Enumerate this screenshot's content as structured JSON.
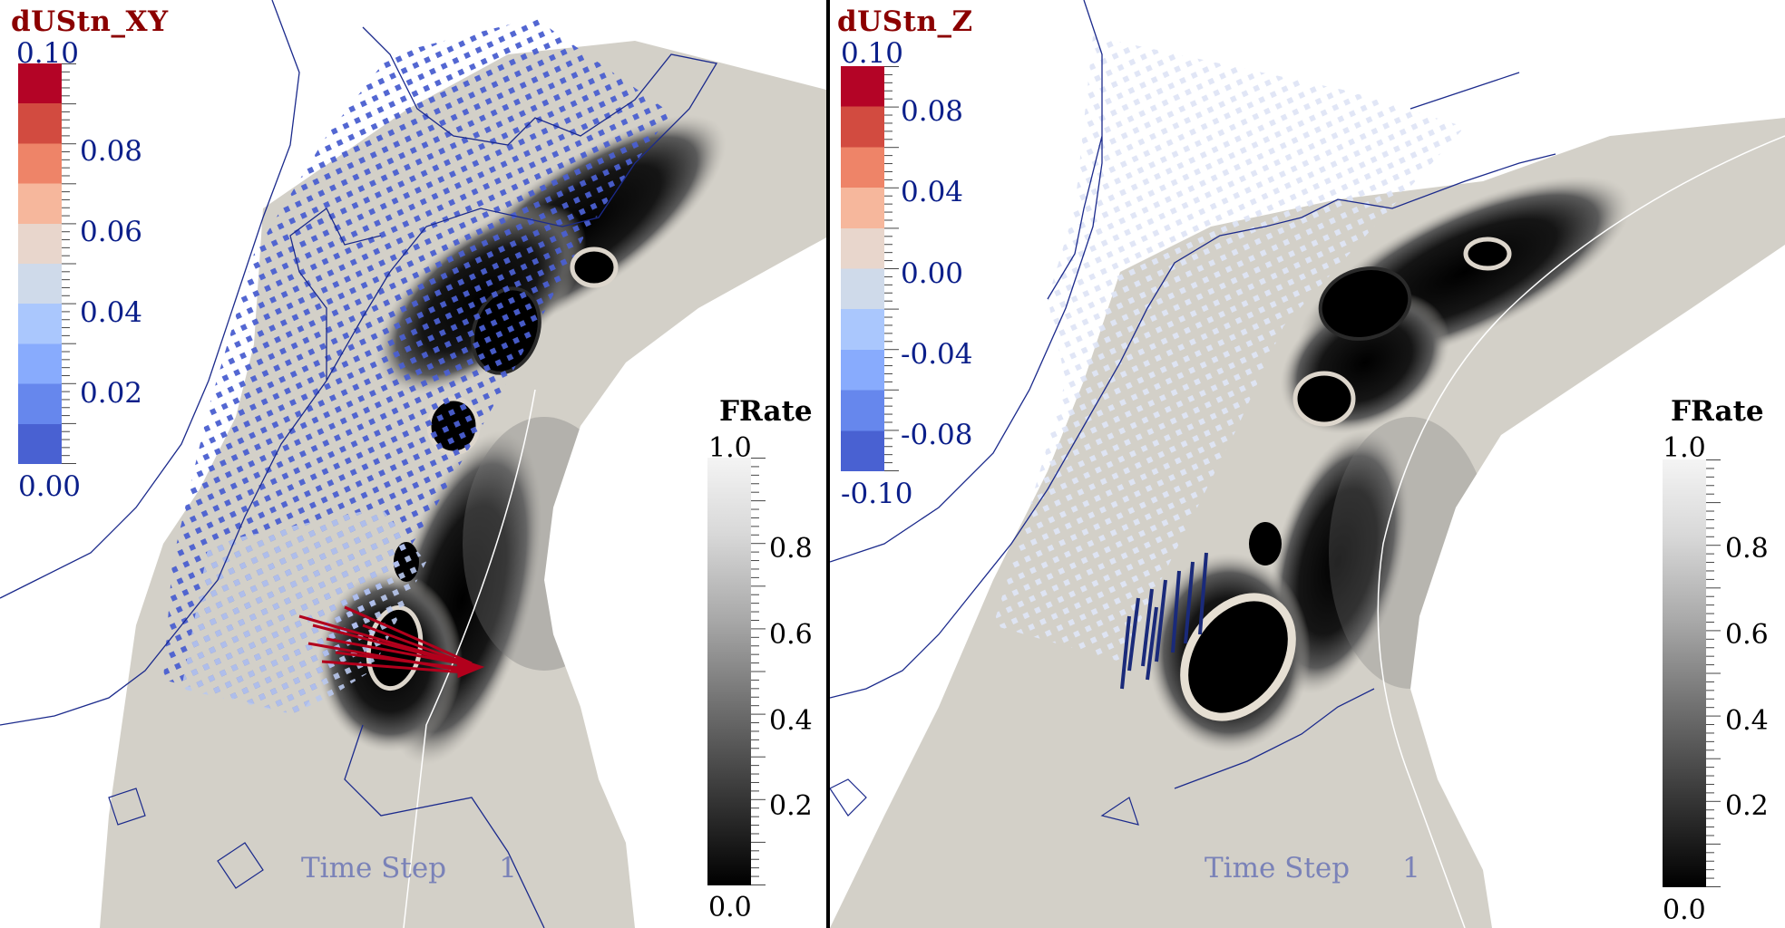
{
  "left": {
    "title": "dUStn_XY",
    "colorbar": {
      "top_label": "0.10",
      "labels": [
        "0.08",
        "0.06",
        "0.04",
        "0.02"
      ],
      "bottom_label": "0.00",
      "colors": [
        "#b40426",
        "#d24b40",
        "#ee8468",
        "#f6b79c",
        "#e8d6cc",
        "#cfdaea",
        "#aac7fd",
        "#88abfd",
        "#6687ed",
        "#4961d2"
      ]
    },
    "frate": {
      "title": "FRate",
      "top_label": "1.0",
      "labels": [
        "0.8",
        "0.6",
        "0.4",
        "0.2"
      ],
      "bottom_label": "0.0"
    },
    "time_step": {
      "label": "Time Step",
      "value": "1"
    }
  },
  "right": {
    "title": "dUStn_Z",
    "colorbar": {
      "top_label": "0.10",
      "labels": [
        "0.08",
        "0.04",
        "0.00",
        "-0.04",
        "-0.08"
      ],
      "bottom_label": "-0.10",
      "colors": [
        "#b40426",
        "#d24b40",
        "#ee8468",
        "#f6b79c",
        "#e8d6cc",
        "#cfdaea",
        "#aac7fd",
        "#88abfd",
        "#6687ed",
        "#4961d2"
      ]
    },
    "frate": {
      "title": "FRate",
      "top_label": "1.0",
      "labels": [
        "0.8",
        "0.6",
        "0.4",
        "0.2"
      ],
      "bottom_label": "0.0"
    },
    "time_step": {
      "label": "Time Step",
      "value": "1"
    }
  }
}
